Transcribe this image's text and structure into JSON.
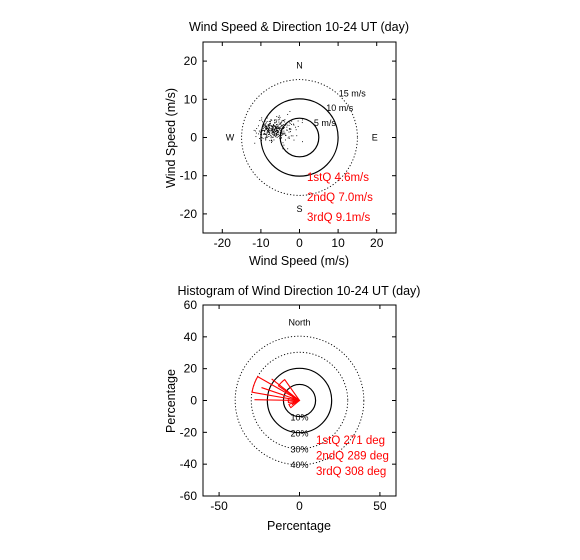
{
  "colors": {
    "stats": "#ff0000",
    "rose": "#ff0000",
    "ink": "#000000"
  },
  "chart_data": [
    {
      "type": "scatter",
      "title": "Wind Speed & Direction 10-24 UT (day)",
      "xlabel": "Wind Speed (m/s)",
      "ylabel": "Wind Speed (m/s)",
      "xlim": [
        -25,
        25
      ],
      "ylim": [
        -25,
        25
      ],
      "xticks": [
        "-20",
        "-10",
        "0",
        "10",
        "20"
      ],
      "yticks": [
        "20",
        "10",
        "0",
        "-10",
        "-20"
      ],
      "grid": false,
      "compass": {
        "n": "N",
        "s": "S",
        "e": "E",
        "w": "W"
      },
      "rings": [
        {
          "radius": 5,
          "label": "5 m/s",
          "style": "solid"
        },
        {
          "radius": 10,
          "label": "10 m/s",
          "style": "solid"
        },
        {
          "radius": 15,
          "label": "15 m/s",
          "style": "dotted"
        }
      ],
      "stats": [
        "1stQ 4.6m/s",
        "2ndQ 7.0m/s",
        "3rdQ 9.1m/s"
      ],
      "cluster": {
        "center_x": -7,
        "center_y": 2,
        "spread": 2.4,
        "count": 340
      }
    },
    {
      "type": "polar_histogram",
      "title": "Histogram of Wind Direction 10-24 UT (day)",
      "xlabel": "Percentage",
      "ylabel": "Percentage",
      "xlim": [
        -60,
        60
      ],
      "ylim": [
        -60,
        60
      ],
      "xticks": [
        "-50",
        "0",
        "50"
      ],
      "yticks": [
        "60",
        "40",
        "20",
        "0",
        "-20",
        "-40",
        "-60"
      ],
      "grid": false,
      "north_label": "North",
      "rings": [
        {
          "radius": 10,
          "label": "10%",
          "style": "solid"
        },
        {
          "radius": 20,
          "label": "20%",
          "style": "solid"
        },
        {
          "radius": 30,
          "label": "30%",
          "style": "dotted"
        },
        {
          "radius": 40,
          "label": "40%",
          "style": "dotted"
        }
      ],
      "bins": [
        {
          "direction_deg": 240,
          "percent": 7
        },
        {
          "direction_deg": 270,
          "percent": 7
        },
        {
          "direction_deg": 290,
          "percent": 30
        },
        {
          "direction_deg": 315,
          "percent": 16
        }
      ],
      "stats": [
        "1stQ 271 deg",
        "2ndQ 289 deg",
        "3rdQ 308 deg"
      ]
    }
  ]
}
